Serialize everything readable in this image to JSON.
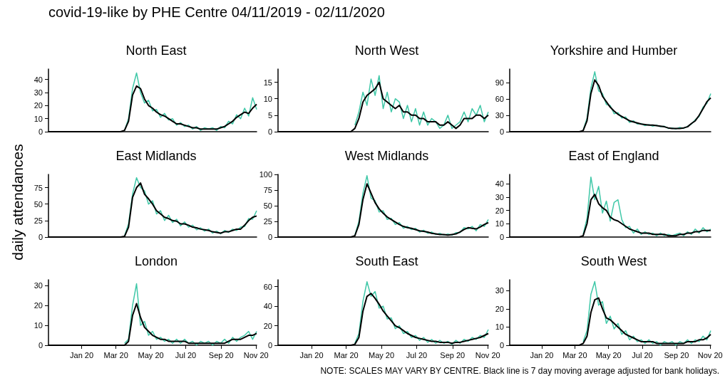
{
  "chart_data": [
    {
      "type": "line",
      "title": "North East",
      "annotations": [
        "covid-19-like by PHE Centre 04/11/2019 - 02/11/2020"
      ],
      "tick_labels": "y",
      "x": [
        "2019-11-04",
        "2019-11-11",
        "2019-11-18",
        "2019-11-25",
        "2019-12-02",
        "2019-12-09",
        "2019-12-16",
        "2019-12-23",
        "2019-12-30",
        "2020-01-06",
        "2020-01-13",
        "2020-01-20",
        "2020-01-27",
        "2020-02-03",
        "2020-02-10",
        "2020-02-17",
        "2020-02-24",
        "2020-03-02",
        "2020-03-09",
        "2020-03-16",
        "2020-03-23",
        "2020-03-30",
        "2020-04-06",
        "2020-04-13",
        "2020-04-20",
        "2020-04-27",
        "2020-05-04",
        "2020-05-11",
        "2020-05-18",
        "2020-05-25",
        "2020-06-01",
        "2020-06-08",
        "2020-06-15",
        "2020-06-22",
        "2020-06-29",
        "2020-07-06",
        "2020-07-13",
        "2020-07-20",
        "2020-07-27",
        "2020-08-03",
        "2020-08-10",
        "2020-08-17",
        "2020-08-24",
        "2020-08-31",
        "2020-09-07",
        "2020-09-14",
        "2020-09-21",
        "2020-09-28",
        "2020-10-05",
        "2020-10-12",
        "2020-10-19",
        "2020-10-26",
        "2020-11-02"
      ],
      "xlim": [
        "2019-11-04",
        "2020-11-02"
      ],
      "ylim": [
        0,
        48
      ],
      "yticks": [
        0,
        10,
        20,
        30,
        40
      ],
      "series": [
        {
          "color": "#40c8a8",
          "values": [
            null,
            null,
            null,
            null,
            null,
            null,
            null,
            null,
            null,
            null,
            null,
            null,
            null,
            null,
            null,
            null,
            null,
            null,
            null,
            1,
            10,
            33,
            45,
            30,
            22,
            24,
            16,
            17,
            11,
            14,
            9,
            10,
            5,
            7,
            4,
            5,
            2,
            4,
            1,
            3,
            2,
            3,
            1,
            4,
            3,
            8,
            6,
            13,
            10,
            18,
            12,
            26,
            17
          ]
        },
        {
          "color": "#000000",
          "values": [
            0,
            0,
            0,
            0,
            0,
            0,
            0,
            0,
            0,
            0,
            0,
            0,
            0,
            0,
            0,
            0,
            0,
            0,
            0,
            1,
            8,
            28,
            35,
            33,
            25,
            20,
            18,
            15,
            13,
            12,
            10,
            8,
            6,
            6,
            5,
            4,
            3,
            3,
            2,
            2,
            2,
            2,
            2,
            3,
            4,
            6,
            8,
            11,
            13,
            15,
            14,
            18,
            21
          ]
        }
      ]
    },
    {
      "type": "line",
      "title": "North West",
      "tick_labels": "y",
      "x": [
        "2019-11-04",
        "2019-11-11",
        "2019-11-18",
        "2019-11-25",
        "2019-12-02",
        "2019-12-09",
        "2019-12-16",
        "2019-12-23",
        "2019-12-30",
        "2020-01-06",
        "2020-01-13",
        "2020-01-20",
        "2020-01-27",
        "2020-02-03",
        "2020-02-10",
        "2020-02-17",
        "2020-02-24",
        "2020-03-02",
        "2020-03-09",
        "2020-03-16",
        "2020-03-23",
        "2020-03-30",
        "2020-04-06",
        "2020-04-13",
        "2020-04-20",
        "2020-04-27",
        "2020-05-04",
        "2020-05-11",
        "2020-05-18",
        "2020-05-25",
        "2020-06-01",
        "2020-06-08",
        "2020-06-15",
        "2020-06-22",
        "2020-06-29",
        "2020-07-06",
        "2020-07-13",
        "2020-07-20",
        "2020-07-27",
        "2020-08-03",
        "2020-08-10",
        "2020-08-17",
        "2020-08-24",
        "2020-08-31",
        "2020-09-07",
        "2020-09-14",
        "2020-09-21",
        "2020-09-28",
        "2020-10-05",
        "2020-10-12",
        "2020-10-19",
        "2020-10-26",
        "2020-11-02"
      ],
      "xlim": [
        "2019-11-04",
        "2020-11-02"
      ],
      "ylim": [
        0,
        19
      ],
      "yticks": [
        0,
        5,
        10,
        15
      ],
      "series": [
        {
          "color": "#40c8a8",
          "values": [
            null,
            null,
            null,
            null,
            null,
            null,
            null,
            null,
            null,
            null,
            null,
            null,
            null,
            null,
            null,
            null,
            null,
            null,
            null,
            2,
            6,
            12,
            8,
            16,
            11,
            17,
            7,
            12,
            6,
            10,
            9,
            4,
            8,
            3,
            7,
            2,
            6,
            2,
            4,
            3,
            1,
            2,
            5,
            1,
            2,
            3,
            6,
            3,
            7,
            5,
            8,
            3,
            6
          ]
        },
        {
          "color": "#000000",
          "values": [
            0,
            0,
            0,
            0,
            0,
            0,
            0,
            0,
            0,
            0,
            0,
            0,
            0,
            0,
            0,
            0,
            0,
            0,
            0,
            1,
            4,
            9,
            11,
            12,
            13,
            15,
            10,
            9,
            8,
            7,
            8,
            6,
            6,
            5,
            5,
            4,
            4,
            3,
            3,
            3,
            2,
            2,
            3,
            2,
            1,
            2,
            4,
            4,
            4,
            5,
            5,
            4,
            5
          ]
        }
      ]
    },
    {
      "type": "line",
      "title": "Yorkshire and Humber",
      "tick_labels": "y",
      "x": [
        "2019-11-04",
        "2019-11-11",
        "2019-11-18",
        "2019-11-25",
        "2019-12-02",
        "2019-12-09",
        "2019-12-16",
        "2019-12-23",
        "2019-12-30",
        "2020-01-06",
        "2020-01-13",
        "2020-01-20",
        "2020-01-27",
        "2020-02-03",
        "2020-02-10",
        "2020-02-17",
        "2020-02-24",
        "2020-03-02",
        "2020-03-09",
        "2020-03-16",
        "2020-03-23",
        "2020-03-30",
        "2020-04-06",
        "2020-04-13",
        "2020-04-20",
        "2020-04-27",
        "2020-05-04",
        "2020-05-11",
        "2020-05-18",
        "2020-05-25",
        "2020-06-01",
        "2020-06-08",
        "2020-06-15",
        "2020-06-22",
        "2020-06-29",
        "2020-07-06",
        "2020-07-13",
        "2020-07-20",
        "2020-07-27",
        "2020-08-03",
        "2020-08-10",
        "2020-08-17",
        "2020-08-24",
        "2020-08-31",
        "2020-09-07",
        "2020-09-14",
        "2020-09-21",
        "2020-09-28",
        "2020-10-05",
        "2020-10-12",
        "2020-10-19",
        "2020-10-26",
        "2020-11-02"
      ],
      "xlim": [
        "2019-11-04",
        "2020-11-02"
      ],
      "ylim": [
        0,
        115
      ],
      "yticks": [
        0,
        30,
        60,
        90
      ],
      "series": [
        {
          "color": "#40c8a8",
          "values": [
            null,
            null,
            null,
            null,
            null,
            null,
            null,
            null,
            null,
            null,
            null,
            null,
            null,
            null,
            null,
            null,
            null,
            null,
            null,
            3,
            25,
            80,
            110,
            75,
            70,
            50,
            48,
            33,
            35,
            25,
            27,
            17,
            20,
            14,
            15,
            11,
            13,
            10,
            12,
            9,
            10,
            6,
            7,
            5,
            8,
            6,
            10,
            14,
            22,
            28,
            45,
            52,
            70
          ]
        },
        {
          "color": "#000000",
          "values": [
            0,
            0,
            0,
            0,
            0,
            0,
            0,
            0,
            0,
            0,
            0,
            0,
            0,
            0,
            0,
            0,
            0,
            0,
            0,
            2,
            20,
            70,
            95,
            85,
            65,
            55,
            45,
            38,
            32,
            28,
            24,
            20,
            18,
            16,
            14,
            13,
            12,
            12,
            11,
            10,
            9,
            7,
            6,
            6,
            6,
            7,
            9,
            15,
            20,
            30,
            42,
            55,
            62
          ]
        }
      ]
    },
    {
      "type": "line",
      "title": "East Midlands",
      "ylabel": "daily attendances",
      "tick_labels": "y",
      "x": [
        "2019-11-04",
        "2019-11-11",
        "2019-11-18",
        "2019-11-25",
        "2019-12-02",
        "2019-12-09",
        "2019-12-16",
        "2019-12-23",
        "2019-12-30",
        "2020-01-06",
        "2020-01-13",
        "2020-01-20",
        "2020-01-27",
        "2020-02-03",
        "2020-02-10",
        "2020-02-17",
        "2020-02-24",
        "2020-03-02",
        "2020-03-09",
        "2020-03-16",
        "2020-03-23",
        "2020-03-30",
        "2020-04-06",
        "2020-04-13",
        "2020-04-20",
        "2020-04-27",
        "2020-05-04",
        "2020-05-11",
        "2020-05-18",
        "2020-05-25",
        "2020-06-01",
        "2020-06-08",
        "2020-06-15",
        "2020-06-22",
        "2020-06-29",
        "2020-07-06",
        "2020-07-13",
        "2020-07-20",
        "2020-07-27",
        "2020-08-03",
        "2020-08-10",
        "2020-08-17",
        "2020-08-24",
        "2020-08-31",
        "2020-09-07",
        "2020-09-14",
        "2020-09-21",
        "2020-09-28",
        "2020-10-05",
        "2020-10-12",
        "2020-10-19",
        "2020-10-26",
        "2020-11-02"
      ],
      "xlim": [
        "2019-11-04",
        "2020-11-02"
      ],
      "ylim": [
        0,
        95
      ],
      "yticks": [
        0,
        25,
        50,
        75
      ],
      "series": [
        {
          "color": "#40c8a8",
          "values": [
            null,
            null,
            null,
            null,
            null,
            null,
            null,
            null,
            null,
            null,
            null,
            null,
            null,
            null,
            null,
            null,
            null,
            null,
            null,
            2,
            20,
            65,
            90,
            75,
            70,
            50,
            55,
            35,
            40,
            25,
            33,
            22,
            27,
            17,
            23,
            15,
            18,
            11,
            14,
            9,
            12,
            6,
            9,
            5,
            10,
            7,
            12,
            10,
            15,
            16,
            28,
            27,
            40
          ]
        },
        {
          "color": "#000000",
          "values": [
            0,
            0,
            0,
            0,
            0,
            0,
            0,
            0,
            0,
            0,
            0,
            0,
            0,
            0,
            0,
            0,
            0,
            0,
            0,
            1,
            15,
            60,
            75,
            82,
            65,
            58,
            50,
            40,
            35,
            30,
            28,
            25,
            24,
            20,
            20,
            18,
            15,
            14,
            12,
            11,
            10,
            8,
            7,
            6,
            8,
            8,
            10,
            12,
            12,
            18,
            25,
            30,
            32
          ]
        }
      ]
    },
    {
      "type": "line",
      "title": "West Midlands",
      "tick_labels": "y",
      "x": [
        "2019-11-04",
        "2019-11-11",
        "2019-11-18",
        "2019-11-25",
        "2019-12-02",
        "2019-12-09",
        "2019-12-16",
        "2019-12-23",
        "2019-12-30",
        "2020-01-06",
        "2020-01-13",
        "2020-01-20",
        "2020-01-27",
        "2020-02-03",
        "2020-02-10",
        "2020-02-17",
        "2020-02-24",
        "2020-03-02",
        "2020-03-09",
        "2020-03-16",
        "2020-03-23",
        "2020-03-30",
        "2020-04-06",
        "2020-04-13",
        "2020-04-20",
        "2020-04-27",
        "2020-05-04",
        "2020-05-11",
        "2020-05-18",
        "2020-05-25",
        "2020-06-01",
        "2020-06-08",
        "2020-06-15",
        "2020-06-22",
        "2020-06-29",
        "2020-07-06",
        "2020-07-13",
        "2020-07-20",
        "2020-07-27",
        "2020-08-03",
        "2020-08-10",
        "2020-08-17",
        "2020-08-24",
        "2020-08-31",
        "2020-09-07",
        "2020-09-14",
        "2020-09-21",
        "2020-09-28",
        "2020-10-05",
        "2020-10-12",
        "2020-10-19",
        "2020-10-26",
        "2020-11-02"
      ],
      "xlim": [
        "2019-11-04",
        "2020-11-02"
      ],
      "ylim": [
        0,
        100
      ],
      "yticks": [
        0,
        25,
        50,
        75,
        100
      ],
      "series": [
        {
          "color": "#40c8a8",
          "values": [
            null,
            null,
            null,
            null,
            null,
            null,
            null,
            null,
            null,
            null,
            null,
            null,
            null,
            null,
            null,
            null,
            null,
            null,
            null,
            3,
            25,
            70,
            98,
            62,
            58,
            40,
            42,
            28,
            30,
            20,
            23,
            14,
            17,
            12,
            14,
            8,
            11,
            6,
            8,
            4,
            6,
            3,
            5,
            3,
            7,
            7,
            15,
            13,
            17,
            10,
            20,
            17,
            28
          ]
        },
        {
          "color": "#000000",
          "values": [
            0,
            0,
            0,
            0,
            0,
            0,
            0,
            0,
            0,
            0,
            0,
            0,
            0,
            0,
            0,
            0,
            0,
            0,
            0,
            2,
            20,
            60,
            85,
            70,
            55,
            45,
            38,
            32,
            28,
            24,
            20,
            17,
            15,
            14,
            12,
            10,
            9,
            8,
            6,
            5,
            4,
            4,
            3,
            4,
            5,
            8,
            12,
            15,
            14,
            13,
            16,
            20,
            23
          ]
        }
      ]
    },
    {
      "type": "line",
      "title": "East of England",
      "tick_labels": "y",
      "x": [
        "2019-11-04",
        "2019-11-11",
        "2019-11-18",
        "2019-11-25",
        "2019-12-02",
        "2019-12-09",
        "2019-12-16",
        "2019-12-23",
        "2019-12-30",
        "2020-01-06",
        "2020-01-13",
        "2020-01-20",
        "2020-01-27",
        "2020-02-03",
        "2020-02-10",
        "2020-02-17",
        "2020-02-24",
        "2020-03-02",
        "2020-03-09",
        "2020-03-16",
        "2020-03-23",
        "2020-03-30",
        "2020-04-06",
        "2020-04-13",
        "2020-04-20",
        "2020-04-27",
        "2020-05-04",
        "2020-05-11",
        "2020-05-18",
        "2020-05-25",
        "2020-06-01",
        "2020-06-08",
        "2020-06-15",
        "2020-06-22",
        "2020-06-29",
        "2020-07-06",
        "2020-07-13",
        "2020-07-20",
        "2020-07-27",
        "2020-08-03",
        "2020-08-10",
        "2020-08-17",
        "2020-08-24",
        "2020-08-31",
        "2020-09-07",
        "2020-09-14",
        "2020-09-21",
        "2020-09-28",
        "2020-10-05",
        "2020-10-12",
        "2020-10-19",
        "2020-10-26",
        "2020-11-02"
      ],
      "xlim": [
        "2019-11-04",
        "2020-11-02"
      ],
      "ylim": [
        0,
        47
      ],
      "yticks": [
        0,
        10,
        20,
        30,
        40
      ],
      "series": [
        {
          "color": "#40c8a8",
          "values": [
            null,
            null,
            null,
            null,
            null,
            null,
            null,
            null,
            null,
            null,
            null,
            null,
            null,
            null,
            null,
            null,
            null,
            null,
            null,
            2,
            14,
            45,
            28,
            38,
            18,
            27,
            12,
            26,
            28,
            13,
            7,
            8,
            3,
            6,
            2,
            4,
            2,
            3,
            1,
            3,
            1,
            2,
            1,
            2,
            3,
            1,
            4,
            2,
            6,
            3,
            7,
            4,
            6
          ]
        },
        {
          "color": "#000000",
          "values": [
            0,
            0,
            0,
            0,
            0,
            0,
            0,
            0,
            0,
            0,
            0,
            0,
            0,
            0,
            0,
            0,
            0,
            0,
            0,
            1,
            10,
            28,
            32,
            25,
            22,
            20,
            15,
            13,
            12,
            10,
            8,
            6,
            5,
            4,
            3,
            3,
            3,
            2,
            2,
            2,
            2,
            1,
            1,
            1,
            2,
            2,
            3,
            3,
            4,
            4,
            5,
            5,
            5
          ]
        }
      ]
    },
    {
      "type": "line",
      "title": "London",
      "x": [
        "2019-11-04",
        "2019-11-11",
        "2019-11-18",
        "2019-11-25",
        "2019-12-02",
        "2019-12-09",
        "2019-12-16",
        "2019-12-23",
        "2019-12-30",
        "2020-01-06",
        "2020-01-13",
        "2020-01-20",
        "2020-01-27",
        "2020-02-03",
        "2020-02-10",
        "2020-02-17",
        "2020-02-24",
        "2020-03-02",
        "2020-03-09",
        "2020-03-16",
        "2020-03-23",
        "2020-03-30",
        "2020-04-06",
        "2020-04-13",
        "2020-04-20",
        "2020-04-27",
        "2020-05-04",
        "2020-05-11",
        "2020-05-18",
        "2020-05-25",
        "2020-06-01",
        "2020-06-08",
        "2020-06-15",
        "2020-06-22",
        "2020-06-29",
        "2020-07-06",
        "2020-07-13",
        "2020-07-20",
        "2020-07-27",
        "2020-08-03",
        "2020-08-10",
        "2020-08-17",
        "2020-08-24",
        "2020-08-31",
        "2020-09-07",
        "2020-09-14",
        "2020-09-21",
        "2020-09-28",
        "2020-10-05",
        "2020-10-12",
        "2020-10-19",
        "2020-10-26",
        "2020-11-02"
      ],
      "xlim": [
        "2019-11-04",
        "2020-11-02"
      ],
      "xticks": [
        {
          "value": "2020-01-01",
          "label": "Jan 20"
        },
        {
          "value": "2020-03-01",
          "label": "Mar 20"
        },
        {
          "value": "2020-05-01",
          "label": "May 20"
        },
        {
          "value": "2020-07-01",
          "label": "Jul 20"
        },
        {
          "value": "2020-09-01",
          "label": "Sep 20"
        },
        {
          "value": "2020-11-01",
          "label": "Nov 20"
        }
      ],
      "ylim": [
        0,
        33
      ],
      "yticks": [
        0,
        10,
        20,
        30
      ],
      "series": [
        {
          "color": "#40c8a8",
          "values": [
            null,
            null,
            null,
            null,
            null,
            null,
            null,
            null,
            null,
            null,
            null,
            null,
            null,
            null,
            null,
            null,
            null,
            null,
            null,
            1,
            3,
            20,
            31,
            10,
            12,
            5,
            7,
            3,
            4,
            2,
            3,
            1,
            3,
            1,
            3,
            1,
            2,
            0,
            2,
            1,
            2,
            0,
            2,
            1,
            3,
            1,
            4,
            2,
            4,
            5,
            7,
            3,
            7
          ]
        },
        {
          "color": "#000000",
          "values": [
            0,
            0,
            0,
            0,
            0,
            0,
            0,
            0,
            0,
            0,
            0,
            0,
            0,
            0,
            0,
            0,
            0,
            0,
            0,
            0,
            2,
            15,
            21,
            14,
            9,
            7,
            5,
            4,
            3,
            3,
            2,
            2,
            2,
            2,
            2,
            1,
            1,
            1,
            1,
            1,
            1,
            1,
            1,
            1,
            1,
            2,
            3,
            3,
            3,
            4,
            5,
            5,
            6
          ]
        }
      ]
    },
    {
      "type": "line",
      "title": "South East",
      "x": [
        "2019-11-04",
        "2019-11-11",
        "2019-11-18",
        "2019-11-25",
        "2019-12-02",
        "2019-12-09",
        "2019-12-16",
        "2019-12-23",
        "2019-12-30",
        "2020-01-06",
        "2020-01-13",
        "2020-01-20",
        "2020-01-27",
        "2020-02-03",
        "2020-02-10",
        "2020-02-17",
        "2020-02-24",
        "2020-03-02",
        "2020-03-09",
        "2020-03-16",
        "2020-03-23",
        "2020-03-30",
        "2020-04-06",
        "2020-04-13",
        "2020-04-20",
        "2020-04-27",
        "2020-05-04",
        "2020-05-11",
        "2020-05-18",
        "2020-05-25",
        "2020-06-01",
        "2020-06-08",
        "2020-06-15",
        "2020-06-22",
        "2020-06-29",
        "2020-07-06",
        "2020-07-13",
        "2020-07-20",
        "2020-07-27",
        "2020-08-03",
        "2020-08-10",
        "2020-08-17",
        "2020-08-24",
        "2020-08-31",
        "2020-09-07",
        "2020-09-14",
        "2020-09-21",
        "2020-09-28",
        "2020-10-05",
        "2020-10-12",
        "2020-10-19",
        "2020-10-26",
        "2020-11-02"
      ],
      "xlim": [
        "2019-11-04",
        "2020-11-02"
      ],
      "xticks": [
        {
          "value": "2020-01-01",
          "label": "Jan 20"
        },
        {
          "value": "2020-03-01",
          "label": "Mar 20"
        },
        {
          "value": "2020-05-01",
          "label": "May 20"
        },
        {
          "value": "2020-07-01",
          "label": "Jul 20"
        },
        {
          "value": "2020-09-01",
          "label": "Sep 20"
        },
        {
          "value": "2020-11-01",
          "label": "Nov 20"
        }
      ],
      "ylim": [
        0,
        67
      ],
      "yticks": [
        0,
        20,
        40,
        60
      ],
      "series": [
        {
          "color": "#40c8a8",
          "values": [
            null,
            null,
            null,
            null,
            null,
            null,
            null,
            null,
            null,
            null,
            null,
            null,
            null,
            null,
            null,
            null,
            null,
            null,
            null,
            2,
            12,
            45,
            65,
            50,
            55,
            38,
            40,
            27,
            28,
            17,
            20,
            12,
            14,
            8,
            10,
            5,
            8,
            3,
            6,
            2,
            5,
            2,
            4,
            1,
            5,
            2,
            6,
            4,
            8,
            6,
            10,
            8,
            16
          ]
        },
        {
          "color": "#000000",
          "values": [
            0,
            0,
            0,
            0,
            0,
            0,
            0,
            0,
            0,
            0,
            0,
            0,
            0,
            0,
            0,
            0,
            0,
            0,
            0,
            1,
            8,
            35,
            50,
            53,
            48,
            42,
            35,
            30,
            25,
            20,
            18,
            15,
            12,
            10,
            8,
            7,
            6,
            5,
            4,
            4,
            3,
            3,
            3,
            2,
            3,
            3,
            4,
            5,
            6,
            7,
            8,
            10,
            12
          ]
        }
      ]
    },
    {
      "type": "line",
      "title": "South West",
      "annotations": [
        "NOTE: SCALES MAY VARY BY CENTRE. Black line is 7 day moving average adjusted for bank holidays."
      ],
      "x": [
        "2019-11-04",
        "2019-11-11",
        "2019-11-18",
        "2019-11-25",
        "2019-12-02",
        "2019-12-09",
        "2019-12-16",
        "2019-12-23",
        "2019-12-30",
        "2020-01-06",
        "2020-01-13",
        "2020-01-20",
        "2020-01-27",
        "2020-02-03",
        "2020-02-10",
        "2020-02-17",
        "2020-02-24",
        "2020-03-02",
        "2020-03-09",
        "2020-03-16",
        "2020-03-23",
        "2020-03-30",
        "2020-04-06",
        "2020-04-13",
        "2020-04-20",
        "2020-04-27",
        "2020-05-04",
        "2020-05-11",
        "2020-05-18",
        "2020-05-25",
        "2020-06-01",
        "2020-06-08",
        "2020-06-15",
        "2020-06-22",
        "2020-06-29",
        "2020-07-06",
        "2020-07-13",
        "2020-07-20",
        "2020-07-27",
        "2020-08-03",
        "2020-08-10",
        "2020-08-17",
        "2020-08-24",
        "2020-08-31",
        "2020-09-07",
        "2020-09-14",
        "2020-09-21",
        "2020-09-28",
        "2020-10-05",
        "2020-10-12",
        "2020-10-19",
        "2020-10-26",
        "2020-11-02"
      ],
      "xlim": [
        "2019-11-04",
        "2020-11-02"
      ],
      "xticks": [
        {
          "value": "2020-01-01",
          "label": "Jan 20"
        },
        {
          "value": "2020-03-01",
          "label": "Mar 20"
        },
        {
          "value": "2020-05-01",
          "label": "May 20"
        },
        {
          "value": "2020-07-01",
          "label": "Jul 20"
        },
        {
          "value": "2020-09-01",
          "label": "Sep 20"
        },
        {
          "value": "2020-11-01",
          "label": "Nov 20"
        }
      ],
      "ylim": [
        0,
        36
      ],
      "yticks": [
        0,
        10,
        20,
        30
      ],
      "series": [
        {
          "color": "#40c8a8",
          "values": [
            null,
            null,
            null,
            null,
            null,
            null,
            null,
            null,
            null,
            null,
            null,
            null,
            null,
            null,
            null,
            null,
            null,
            null,
            null,
            2,
            8,
            28,
            35,
            22,
            24,
            12,
            16,
            9,
            12,
            6,
            8,
            3,
            5,
            2,
            3,
            1,
            3,
            1,
            2,
            0,
            2,
            1,
            2,
            0,
            2,
            1,
            3,
            1,
            3,
            2,
            5,
            3,
            8
          ]
        },
        {
          "color": "#000000",
          "values": [
            0,
            0,
            0,
            0,
            0,
            0,
            0,
            0,
            0,
            0,
            0,
            0,
            0,
            0,
            0,
            0,
            0,
            0,
            0,
            1,
            5,
            18,
            25,
            26,
            20,
            15,
            14,
            12,
            10,
            8,
            6,
            5,
            4,
            3,
            2,
            2,
            2,
            2,
            1,
            1,
            1,
            1,
            1,
            1,
            1,
            1,
            2,
            2,
            2,
            3,
            3,
            4,
            6
          ]
        }
      ]
    }
  ]
}
